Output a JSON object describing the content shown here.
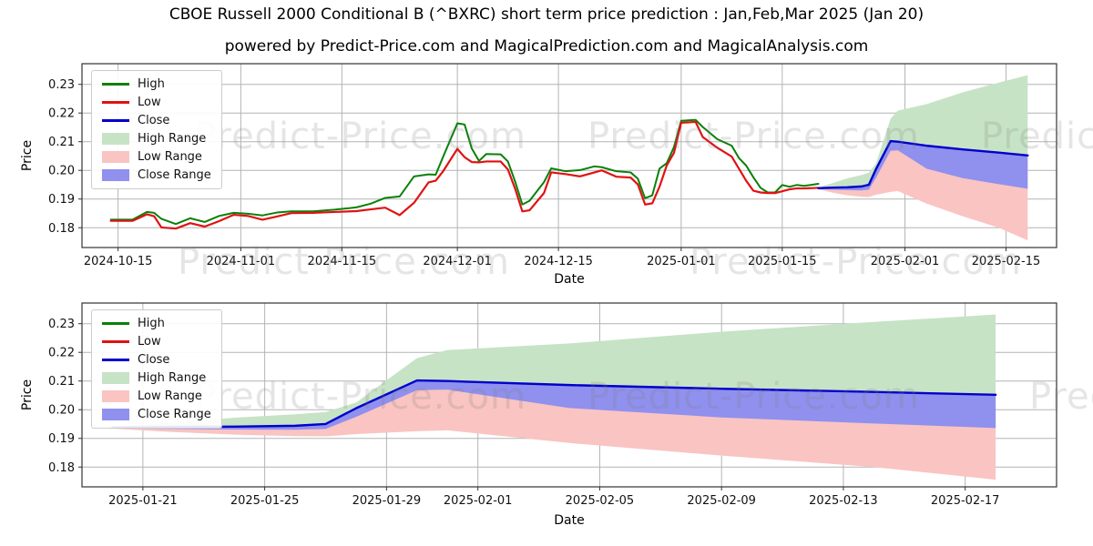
{
  "figure": {
    "title": "CBOE Russell 2000 Conditional B (^BXRC) short term price prediction : Jan,Feb,Mar 2025 (Jan 20)",
    "subtitle": "powered by Predict-Price.com and MagicalPrediction.com and MagicalAnalysis.com",
    "watermark_text": "Predict-Price.com",
    "colors": {
      "high_line": "#0a800a",
      "low_line": "#e01212",
      "close_line": "#0000cc",
      "high_range": "#c7e3c6",
      "low_range": "#f9c4c2",
      "close_range": "#9090ee",
      "grid": "#b4b4b4",
      "spine": "#333333",
      "background": "#ffffff"
    }
  },
  "legend": {
    "items": [
      {
        "label": "High",
        "type": "line",
        "color": "#0a800a"
      },
      {
        "label": "Low",
        "type": "line",
        "color": "#e01212"
      },
      {
        "label": "Close",
        "type": "line",
        "color": "#0000cc"
      },
      {
        "label": "High Range",
        "type": "patch",
        "color": "#c7e3c6"
      },
      {
        "label": "Low Range",
        "type": "patch",
        "color": "#f9c4c2"
      },
      {
        "label": "Close Range",
        "type": "patch",
        "color": "#9090ee"
      }
    ]
  },
  "history": {
    "dates": [
      "2024-10-14",
      "2024-10-17",
      "2024-10-19",
      "2024-10-20",
      "2024-10-21",
      "2024-10-23",
      "2024-10-25",
      "2024-10-27",
      "2024-10-29",
      "2024-10-31",
      "2024-11-02",
      "2024-11-04",
      "2024-11-06",
      "2024-11-08",
      "2024-11-11",
      "2024-11-14",
      "2024-11-17",
      "2024-11-19",
      "2024-11-21",
      "2024-11-23",
      "2024-11-25",
      "2024-11-27",
      "2024-11-28",
      "2024-11-29",
      "2024-12-01",
      "2024-12-02",
      "2024-12-03",
      "2024-12-04",
      "2024-12-05",
      "2024-12-07",
      "2024-12-08",
      "2024-12-09",
      "2024-12-10",
      "2024-12-11",
      "2024-12-13",
      "2024-12-14",
      "2024-12-16",
      "2024-12-18",
      "2024-12-20",
      "2024-12-21",
      "2024-12-23",
      "2024-12-25",
      "2024-12-26",
      "2024-12-27",
      "2024-12-28",
      "2024-12-29",
      "2024-12-30",
      "2024-12-31",
      "2025-01-01",
      "2025-01-03",
      "2025-01-04",
      "2025-01-06",
      "2025-01-08",
      "2025-01-09",
      "2025-01-10",
      "2025-01-11",
      "2025-01-12",
      "2025-01-13",
      "2025-01-14",
      "2025-01-15",
      "2025-01-16",
      "2025-01-17",
      "2025-01-18",
      "2025-01-20"
    ],
    "high": [
      0.1828,
      0.1828,
      0.1855,
      0.1852,
      0.1831,
      0.1813,
      0.1833,
      0.182,
      0.1841,
      0.1852,
      0.1849,
      0.1843,
      0.1853,
      0.1857,
      0.1857,
      0.1863,
      0.1871,
      0.1884,
      0.1904,
      0.1909,
      0.1979,
      0.1986,
      0.1985,
      0.2046,
      0.2164,
      0.216,
      0.2076,
      0.2033,
      0.2057,
      0.2056,
      0.2031,
      0.1961,
      0.1881,
      0.1894,
      0.1959,
      0.2007,
      0.1997,
      0.2001,
      0.2014,
      0.2011,
      0.1997,
      0.1993,
      0.1971,
      0.1903,
      0.1913,
      0.2006,
      0.2025,
      0.2081,
      0.2173,
      0.2176,
      0.2151,
      0.2109,
      0.2086,
      0.2043,
      0.2017,
      0.1976,
      0.1939,
      0.1923,
      0.1923,
      0.1949,
      0.1943,
      0.1949,
      0.1946,
      0.1953
    ],
    "low": [
      0.1824,
      0.1824,
      0.1847,
      0.184,
      0.1801,
      0.1797,
      0.1816,
      0.1804,
      0.1823,
      0.1845,
      0.1841,
      0.1828,
      0.1839,
      0.1851,
      0.1852,
      0.1855,
      0.1858,
      0.1864,
      0.187,
      0.1844,
      0.1887,
      0.1958,
      0.1964,
      0.1996,
      0.2075,
      0.2046,
      0.2029,
      0.2028,
      0.2031,
      0.2031,
      0.2003,
      0.1936,
      0.1857,
      0.1861,
      0.1921,
      0.1993,
      0.1987,
      0.1979,
      0.1993,
      0.2,
      0.1978,
      0.1975,
      0.1951,
      0.1881,
      0.1885,
      0.1943,
      0.2017,
      0.2061,
      0.2166,
      0.2169,
      0.2116,
      0.2079,
      0.2048,
      0.2006,
      0.1964,
      0.1929,
      0.1923,
      0.1921,
      0.1921,
      0.1927,
      0.1934,
      0.1937,
      0.1937,
      0.1939
    ]
  },
  "prediction": {
    "dates": [
      "2025-01-20",
      "2025-01-22",
      "2025-01-24",
      "2025-01-26",
      "2025-01-27",
      "2025-01-28",
      "2025-01-30",
      "2025-01-31",
      "2025-02-04",
      "2025-02-09",
      "2025-02-14",
      "2025-02-18"
    ],
    "close": [
      0.1938,
      0.194,
      0.1941,
      0.1944,
      0.195,
      0.2005,
      0.2102,
      0.21,
      0.2086,
      0.2073,
      0.2062,
      0.2052
    ],
    "close_lower": [
      0.1935,
      0.1933,
      0.1931,
      0.193,
      0.1933,
      0.1975,
      0.2068,
      0.207,
      0.2006,
      0.1973,
      0.1952,
      0.1936
    ],
    "high_upper": [
      0.1941,
      0.1956,
      0.1972,
      0.1984,
      0.1992,
      0.2025,
      0.218,
      0.2208,
      0.2231,
      0.2272,
      0.2306,
      0.2332
    ],
    "low_lower": [
      0.1934,
      0.1922,
      0.1913,
      0.1908,
      0.1907,
      0.1915,
      0.1925,
      0.1928,
      0.1884,
      0.184,
      0.18,
      0.1756
    ]
  },
  "chart_data": [
    {
      "id": "overview",
      "type": "line",
      "show_history": true,
      "xlabel": "Date",
      "ylabel": "Price",
      "xlim": [
        "2024-10-10",
        "2025-02-22"
      ],
      "ylim": [
        0.1731,
        0.2372
      ],
      "grid": true,
      "legend_position": "upper left",
      "ytick_values": [
        0.18,
        0.19,
        0.2,
        0.21,
        0.22,
        0.23
      ],
      "ytick_labels": [
        "0.18",
        "0.19",
        "0.20",
        "0.21",
        "0.22",
        "0.23"
      ],
      "xtick_dates": [
        "2024-10-15",
        "2024-11-01",
        "2024-11-15",
        "2024-12-01",
        "2024-12-15",
        "2025-01-01",
        "2025-01-15",
        "2025-02-01",
        "2025-02-15"
      ],
      "xtick_labels": [
        "2024-10-15",
        "2024-11-01",
        "2024-11-15",
        "2024-12-01",
        "2024-12-15",
        "2025-01-01",
        "2025-01-15",
        "2025-02-01",
        "2025-02-15"
      ]
    },
    {
      "id": "prediction-zoom",
      "type": "line",
      "show_history": false,
      "xlabel": "Date",
      "ylabel": "Price",
      "xlim": [
        "2025-01-19",
        "2025-02-20"
      ],
      "ylim": [
        0.1731,
        0.2372
      ],
      "grid": true,
      "legend_position": "upper left",
      "ytick_values": [
        0.18,
        0.19,
        0.2,
        0.21,
        0.22,
        0.23
      ],
      "ytick_labels": [
        "0.18",
        "0.19",
        "0.20",
        "0.21",
        "0.22",
        "0.23"
      ],
      "xtick_dates": [
        "2025-01-21",
        "2025-01-25",
        "2025-01-29",
        "2025-02-01",
        "2025-02-05",
        "2025-02-09",
        "2025-02-13",
        "2025-02-17"
      ],
      "xtick_labels": [
        "2025-01-21",
        "2025-01-25",
        "2025-01-29",
        "2025-02-01",
        "2025-02-05",
        "2025-02-09",
        "2025-02-13",
        "2025-02-17"
      ]
    }
  ]
}
